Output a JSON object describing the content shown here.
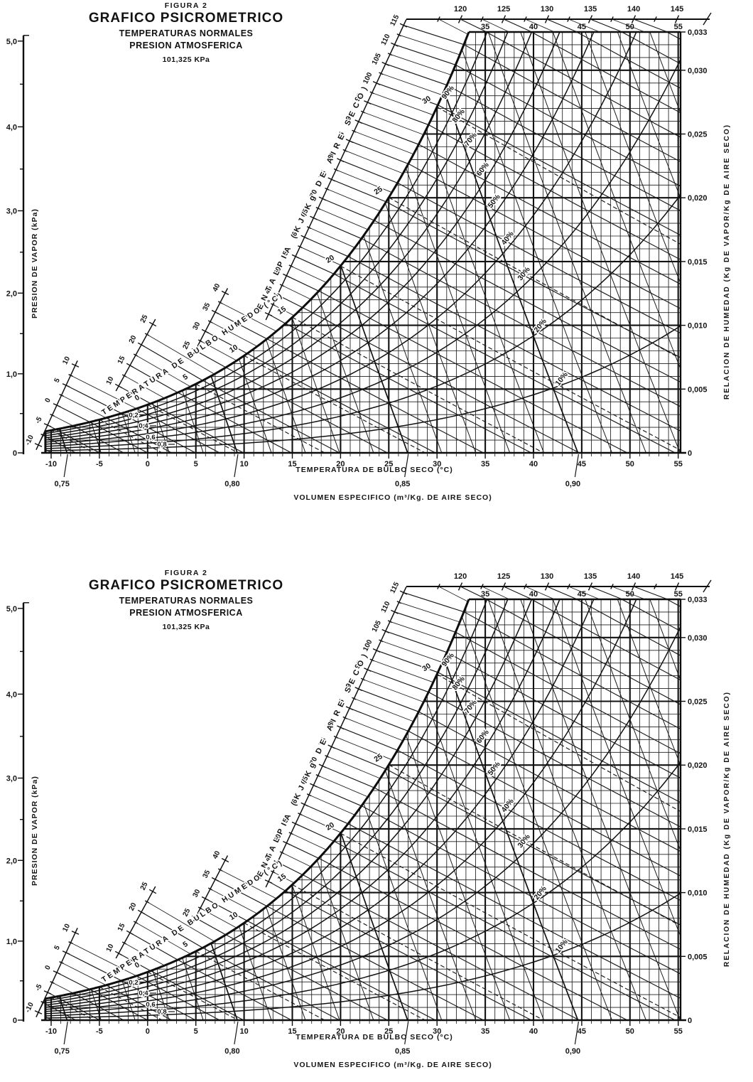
{
  "figure": {
    "label": "FIGURA 2",
    "title": "GRAFICO PSICROMETRICO",
    "subtitle1": "TEMPERATURAS NORMALES",
    "subtitle2": "PRESION ATMOSFERICA",
    "pressure": "101,325 KPa"
  },
  "chart_data": {
    "type": "line",
    "subtype": "psychrometric",
    "title": "GRAFICO PSICROMETRICO",
    "copies": 2,
    "pressure_kpa": 101.325,
    "pressure_label": "101,325 KPa",
    "ink_color": "#141414",
    "background_color": "#ffffff",
    "axes": {
      "dry_bulb": {
        "title": "TEMPERATURA DE BULBO SECO (°C)",
        "min": -10,
        "max": 55,
        "major_step": 5,
        "minor_step": 1,
        "tick_values": [
          -10,
          -5,
          0,
          5,
          10,
          15,
          20,
          25,
          30,
          35,
          40,
          45,
          50,
          55
        ],
        "tick_labels": [
          "-10",
          "-5",
          "0",
          "5",
          "10",
          "15",
          "20",
          "25",
          "30",
          "35",
          "40",
          "45",
          "50",
          "55"
        ],
        "top_tick_values": [
          35,
          40,
          45,
          50,
          55
        ],
        "top_tick_labels": [
          "35",
          "40",
          "45",
          "50",
          "55"
        ]
      },
      "humidity_ratio": {
        "title": "RELACION DE HUMEDAD (Kg DE VAPOR/Kg DE AIRE SECO)",
        "min": 0,
        "max": 0.033,
        "minor_step": 0.001,
        "tick_values": [
          0,
          0.005,
          0.01,
          0.015,
          0.02,
          0.025,
          0.03,
          0.033
        ],
        "tick_labels": [
          "0",
          "0,005",
          "0,010",
          "0,015",
          "0,020",
          "0,025",
          "0,030",
          "0,033"
        ]
      },
      "vapor_pressure": {
        "title": "PRESION DE VAPOR (kPa)",
        "min": 0,
        "max": 5,
        "minor_step": 0.5,
        "tick_values": [
          0,
          1,
          2,
          3,
          4,
          5
        ],
        "tick_labels": [
          "0",
          "1,0",
          "2,0",
          "3,0",
          "4,0",
          "5,0"
        ]
      },
      "enthalpy": {
        "title": "ENTALPIA (KJ/Kg DE AIRE SECO)",
        "units": "kJ/kg de aire seco",
        "main_tick_values": [
          40,
          45,
          50,
          55,
          60,
          65,
          70,
          75,
          80,
          85,
          90,
          95,
          100,
          105,
          110,
          115
        ],
        "main_tick_labels": [
          "40",
          "45",
          "50",
          "55",
          "60",
          "65",
          "70",
          "75",
          "80",
          "85",
          "90",
          "95",
          "100",
          "105",
          "110",
          "115"
        ],
        "top_tick_values": [
          120,
          125,
          130,
          135,
          140,
          145
        ],
        "top_tick_labels": [
          "120",
          "125",
          "130",
          "135",
          "140",
          "145"
        ],
        "segment_tick_values": [
          [
            -10,
            -5,
            0,
            5,
            10
          ],
          [
            10,
            15,
            20,
            25
          ],
          [
            25,
            30,
            35,
            40
          ]
        ],
        "segment_tick_labels": [
          [
            "-10",
            "-5",
            "0",
            "5",
            "10"
          ],
          [
            "10",
            "15",
            "20",
            "25"
          ],
          [
            "25",
            "30",
            "35",
            "40"
          ]
        ]
      },
      "wet_bulb": {
        "title": "TEMPERATURA DE BULBO HUMEDO (°C)",
        "tick_values": [
          0,
          5,
          10,
          15,
          20,
          25,
          30
        ],
        "tick_labels": [
          "0",
          "5",
          "10",
          "15",
          "20",
          "25",
          "30"
        ]
      },
      "specific_volume": {
        "title": "VOLUMEN ESPECIFICO (m³/Kg. DE AIRE SECO)",
        "minor_step": 0.01,
        "tick_values": [
          0.75,
          0.8,
          0.85,
          0.9
        ],
        "tick_labels": [
          "0,75",
          "0,80",
          "0,85",
          "0,90"
        ]
      }
    },
    "rh_curves": {
      "values": [
        10,
        20,
        30,
        40,
        50,
        60,
        70,
        80,
        90
      ],
      "labels": [
        "10%",
        "20%",
        "30%",
        "40%",
        "50%",
        "60%",
        "70%",
        "80%",
        "90%"
      ]
    },
    "enthalpy_deviation_labels": [
      "0,2",
      "0,4",
      "0,6",
      "0,8"
    ],
    "saturation_points": [
      {
        "t_c": -10,
        "w": 0.0016
      },
      {
        "t_c": -5,
        "w": 0.0025
      },
      {
        "t_c": 0,
        "w": 0.0038
      },
      {
        "t_c": 5,
        "w": 0.0054
      },
      {
        "t_c": 10,
        "w": 0.0076
      },
      {
        "t_c": 15,
        "w": 0.0107
      },
      {
        "t_c": 20,
        "w": 0.0147
      },
      {
        "t_c": 25,
        "w": 0.0202
      },
      {
        "t_c": 30,
        "w": 0.0273
      },
      {
        "t_c": 33.4,
        "w": 0.033
      }
    ]
  }
}
